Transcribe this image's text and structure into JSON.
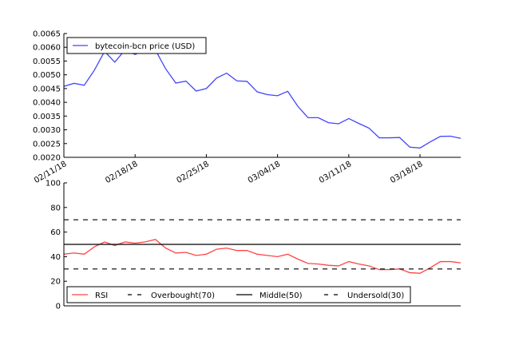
{
  "chart_data": [
    {
      "type": "line",
      "title": "",
      "xlabel": "",
      "ylabel": "",
      "x_start": "02/11/18",
      "x_tick_labels": [
        "02/11/18",
        "02/18/18",
        "02/25/18",
        "03/04/18",
        "03/11/18",
        "03/18/18"
      ],
      "y_tick_labels": [
        "0.0020",
        "0.0025",
        "0.0030",
        "0.0035",
        "0.0040",
        "0.0045",
        "0.0050",
        "0.0055",
        "0.0060",
        "0.0065"
      ],
      "ylim": [
        0.002,
        0.0065
      ],
      "legend_position": "top-left",
      "series": [
        {
          "name": "bytecoin-bcn price (USD)",
          "color": "#4444ff",
          "values": [
            0.00458,
            0.00469,
            0.00462,
            0.00517,
            0.00585,
            0.00546,
            0.0059,
            0.00574,
            0.0059,
            0.0059,
            0.00522,
            0.0047,
            0.00477,
            0.00441,
            0.0045,
            0.00488,
            0.00506,
            0.00478,
            0.00476,
            0.00438,
            0.00428,
            0.00424,
            0.0044,
            0.00385,
            0.00344,
            0.00344,
            0.00326,
            0.00322,
            0.00341,
            0.00323,
            0.00306,
            0.00271,
            0.00271,
            0.00272,
            0.00237,
            0.00234,
            0.00256,
            0.00276,
            0.00277,
            0.00269
          ]
        }
      ]
    },
    {
      "type": "line",
      "title": "",
      "y_tick_labels": [
        "0",
        "20",
        "40",
        "60",
        "80",
        "100"
      ],
      "ylim": [
        0,
        100
      ],
      "legend_position": "bottom-left",
      "series": [
        {
          "name": "RSI",
          "color": "#ff4444",
          "style": "solid",
          "values": [
            42,
            43,
            42,
            48,
            52,
            49,
            52,
            51,
            52,
            54,
            47,
            43,
            43.5,
            41,
            42,
            46,
            47,
            45,
            45,
            42,
            41,
            40,
            42,
            38,
            34.5,
            34,
            33,
            32.5,
            36,
            34,
            32.5,
            29.5,
            29.5,
            30,
            27,
            26.5,
            31,
            36,
            36,
            35
          ]
        },
        {
          "name": "Overbought(70)",
          "color": "#000000",
          "style": "dashed",
          "level": 70
        },
        {
          "name": "Middle(50)",
          "color": "#000000",
          "style": "solid",
          "level": 50
        },
        {
          "name": "Undersold(30)",
          "color": "#000000",
          "style": "dashed",
          "level": 30
        }
      ]
    }
  ]
}
